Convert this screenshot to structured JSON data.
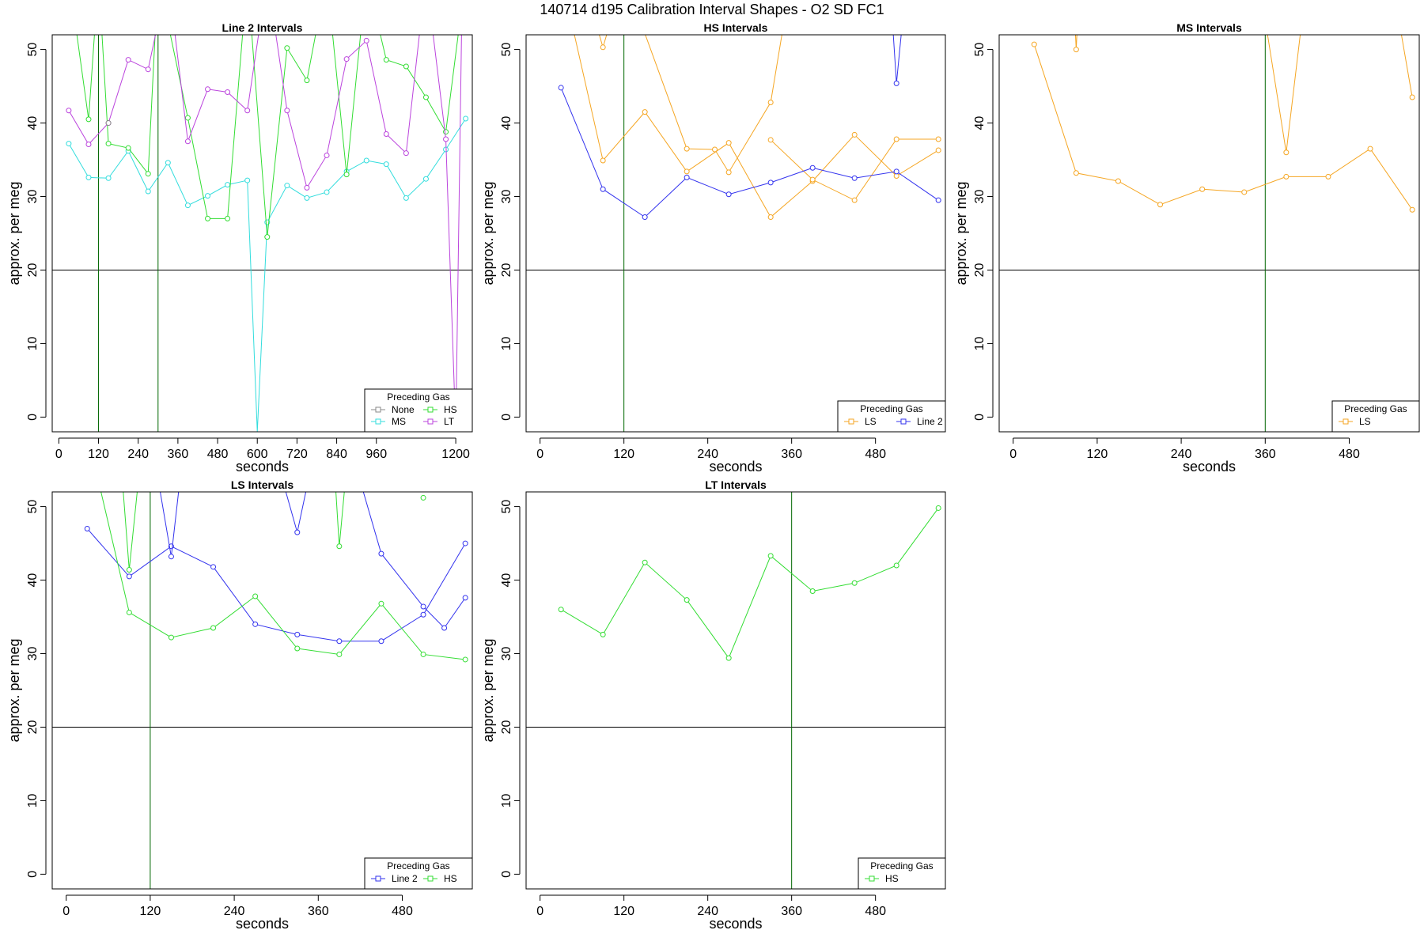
{
  "suptitle": "140714   d195   Calibration Interval Shapes - O2 SD FC1",
  "colors": {
    "HS": "#33dd33",
    "MS": "#33dddd",
    "LT": "#bb44dd",
    "None": "#888888",
    "LS": "#f5a623",
    "Line 2": "#3333ee",
    "ref": "#000000",
    "vline": "#006600"
  },
  "chart_data": [
    {
      "type": "line",
      "title": "Line 2 Intervals",
      "xlabel": "seconds",
      "ylabel": "approx. per meg",
      "xlim": [
        -20,
        1250
      ],
      "ylim": [
        -2,
        52
      ],
      "xticks": [
        0,
        120,
        240,
        360,
        480,
        600,
        720,
        840,
        960,
        1200
      ],
      "yticks": [
        0,
        10,
        20,
        30,
        40,
        50
      ],
      "hline": 20,
      "vlines": [
        120,
        300
      ],
      "legend": {
        "title": "Preceding Gas",
        "position": "bottom-right",
        "entries": [
          "None",
          "HS",
          "MS",
          "LT"
        ],
        "cols": 2
      },
      "series": [
        {
          "name": "MS",
          "x": [
            30,
            90,
            150,
            210,
            270,
            330,
            390,
            450,
            510,
            570,
            600,
            630,
            690,
            750,
            810,
            870,
            930,
            990,
            1050,
            1110,
            1170,
            1230
          ],
          "y": [
            37.2,
            32.6,
            32.5,
            36.2,
            30.7,
            34.6,
            28.8,
            30.1,
            31.6,
            32.2,
            -2,
            26.5,
            31.5,
            29.8,
            30.6,
            33.4,
            34.9,
            34.4,
            29.8,
            32.4,
            36.4,
            40.6
          ]
        },
        {
          "name": "HS",
          "x": [
            30,
            90,
            120,
            150,
            210,
            270,
            300,
            390,
            450,
            510,
            570,
            630,
            690,
            750,
            810,
            870,
            930,
            990,
            1050,
            1110,
            1170,
            1230
          ],
          "y": [
            60,
            40.5,
            60,
            37.2,
            36.6,
            33.1,
            60,
            40.7,
            27,
            27,
            60,
            24.5,
            50.2,
            45.8,
            60,
            33,
            60,
            48.6,
            47.7,
            43.5,
            38.8,
            60
          ]
        },
        {
          "name": "LT",
          "x": [
            30,
            90,
            150,
            210,
            270,
            330,
            390,
            450,
            510,
            570,
            630,
            690,
            750,
            810,
            870,
            930,
            990,
            1050,
            1110,
            1170,
            1200,
            1220
          ],
          "y": [
            41.7,
            37.1,
            40,
            48.6,
            47.3,
            60,
            37.5,
            44.6,
            44.2,
            41.7,
            60,
            41.7,
            31.2,
            35.6,
            48.7,
            51.2,
            38.5,
            35.9,
            60,
            37.8,
            -2,
            60
          ]
        },
        {
          "name": "None",
          "x": [
            150
          ],
          "y": [
            40
          ]
        }
      ]
    },
    {
      "type": "line",
      "title": "HS Intervals",
      "xlabel": "seconds",
      "ylabel": "approx. per meg",
      "xlim": [
        -20,
        580
      ],
      "ylim": [
        -2,
        52
      ],
      "xticks": [
        0,
        120,
        240,
        360,
        480
      ],
      "yticks": [
        0,
        10,
        20,
        30,
        40,
        50
      ],
      "hline": 20,
      "vlines": [
        120
      ],
      "legend": {
        "title": "Preceding Gas",
        "position": "bottom-right",
        "entries": [
          "LS",
          "Line 2"
        ],
        "cols": 2
      },
      "series": [
        {
          "name": "LS",
          "x": [
            30,
            90,
            150,
            210,
            270,
            330,
            390,
            450,
            510,
            570
          ],
          "y": [
            60,
            34.9,
            41.5,
            33.4,
            37.3,
            27.2,
            32.1,
            38.4,
            32.8,
            36.3
          ]
        },
        {
          "name": "LS",
          "x": [
            60,
            90,
            120,
            210,
            250,
            270,
            330,
            360
          ],
          "y": [
            60,
            50.3,
            60,
            36.5,
            36.4,
            33.3,
            42.8,
            60
          ]
        },
        {
          "name": "LS",
          "x": [
            330,
            390,
            450,
            510,
            570
          ],
          "y": [
            37.7,
            32.3,
            29.5,
            37.8,
            37.8
          ]
        },
        {
          "name": "Line 2",
          "x": [
            30,
            90,
            150,
            210,
            270,
            330,
            390,
            450,
            510,
            570
          ],
          "y": [
            44.8,
            31,
            27.2,
            32.6,
            30.3,
            31.9,
            33.9,
            32.5,
            33.4,
            29.5
          ]
        },
        {
          "name": "Line 2",
          "x": [
            500,
            510,
            525
          ],
          "y": [
            60,
            45.4,
            60
          ]
        }
      ]
    },
    {
      "type": "line",
      "title": "MS Intervals",
      "xlabel": "seconds",
      "ylabel": "approx. per meg",
      "xlim": [
        -20,
        580
      ],
      "ylim": [
        -2,
        52
      ],
      "xticks": [
        0,
        120,
        240,
        360,
        480
      ],
      "yticks": [
        0,
        10,
        20,
        30,
        40,
        50
      ],
      "hline": 20,
      "vlines": [
        360
      ],
      "legend": {
        "title": "Preceding Gas",
        "position": "bottom-right",
        "entries": [
          "LS"
        ],
        "cols": 1
      },
      "series": [
        {
          "name": "LS",
          "x": [
            30,
            90,
            150,
            210,
            270,
            330,
            390,
            450,
            510,
            570
          ],
          "y": [
            50.7,
            33.2,
            32.1,
            28.9,
            31,
            30.6,
            32.7,
            32.7,
            36.5,
            28.2
          ]
        },
        {
          "name": "LS",
          "x": [
            85,
            90,
            95
          ],
          "y": [
            60,
            50,
            60
          ]
        },
        {
          "name": "LS",
          "x": [
            350,
            390,
            420
          ],
          "y": [
            60,
            36,
            60
          ]
        },
        {
          "name": "LS",
          "x": [
            540,
            570
          ],
          "y": [
            60,
            43.5
          ]
        }
      ]
    },
    {
      "type": "line",
      "title": "LS Intervals",
      "xlabel": "seconds",
      "ylabel": "approx. per meg",
      "xlim": [
        -20,
        580
      ],
      "ylim": [
        -2,
        52
      ],
      "xticks": [
        0,
        120,
        240,
        360,
        480
      ],
      "yticks": [
        0,
        10,
        20,
        30,
        40,
        50
      ],
      "hline": 20,
      "vlines": [
        120
      ],
      "legend": {
        "title": "Preceding Gas",
        "position": "bottom-right",
        "entries": [
          "Line 2",
          "HS"
        ],
        "cols": 2
      },
      "series": [
        {
          "name": "Line 2",
          "x": [
            30,
            90,
            150,
            210,
            270,
            330,
            390,
            450,
            510,
            570
          ],
          "y": [
            47,
            40.5,
            44.6,
            41.8,
            34,
            32.6,
            31.7,
            31.7,
            35.3,
            45
          ]
        },
        {
          "name": "Line 2",
          "x": [
            120,
            150,
            170
          ],
          "y": [
            60,
            43.2,
            60
          ]
        },
        {
          "name": "Line 2",
          "x": [
            290,
            330,
            360,
            400,
            450,
            510,
            540,
            570
          ],
          "y": [
            60,
            46.5,
            60,
            60,
            43.6,
            36.4,
            33.5,
            37.6
          ]
        },
        {
          "name": "HS",
          "x": [
            30,
            90,
            150,
            210,
            270,
            330,
            390,
            450,
            510,
            570
          ],
          "y": [
            60,
            35.6,
            32.2,
            33.5,
            37.8,
            30.7,
            29.9,
            36.8,
            29.9,
            29.2
          ]
        },
        {
          "name": "HS",
          "x": [
            75,
            90,
            110
          ],
          "y": [
            60,
            41.4,
            60
          ]
        },
        {
          "name": "HS",
          "x": [
            380,
            390,
            405
          ],
          "y": [
            60,
            44.6,
            60
          ]
        },
        {
          "name": "HS",
          "x": [
            510
          ],
          "y": [
            51.2
          ]
        }
      ]
    },
    {
      "type": "line",
      "title": "LT Intervals",
      "xlabel": "seconds",
      "ylabel": "approx. per meg",
      "xlim": [
        -20,
        580
      ],
      "ylim": [
        -2,
        52
      ],
      "xticks": [
        0,
        120,
        240,
        360,
        480
      ],
      "yticks": [
        0,
        10,
        20,
        30,
        40,
        50
      ],
      "hline": 20,
      "vlines": [
        360
      ],
      "legend": {
        "title": "Preceding Gas",
        "position": "bottom-right",
        "entries": [
          "HS"
        ],
        "cols": 1
      },
      "series": [
        {
          "name": "HS",
          "x": [
            30,
            90,
            150,
            210,
            270,
            330,
            390,
            450,
            510,
            570
          ],
          "y": [
            36,
            32.6,
            42.4,
            37.3,
            29.4,
            43.3,
            38.5,
            39.6,
            42,
            49.8
          ]
        }
      ]
    }
  ]
}
